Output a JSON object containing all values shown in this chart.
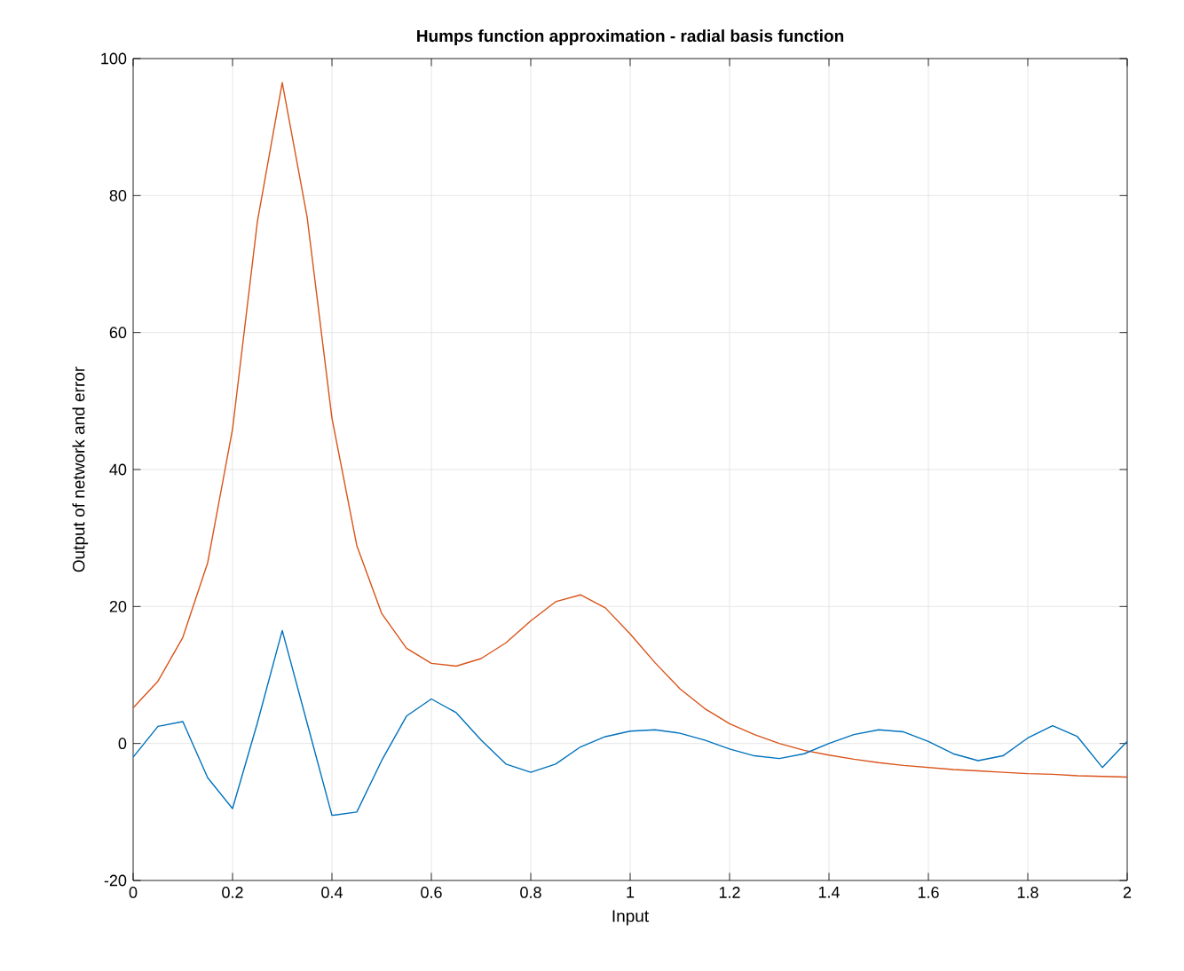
{
  "chart_data": {
    "type": "line",
    "title": "Humps function approximation - radial basis function",
    "xlabel": "Input",
    "ylabel": "Output of network and error",
    "x": [
      0,
      0.05,
      0.1,
      0.15,
      0.2,
      0.25,
      0.3,
      0.35,
      0.4,
      0.45,
      0.5,
      0.55,
      0.6,
      0.65,
      0.7,
      0.75,
      0.8,
      0.85,
      0.9,
      0.95,
      1.0,
      1.05,
      1.1,
      1.15,
      1.2,
      1.25,
      1.3,
      1.35,
      1.4,
      1.45,
      1.5,
      1.55,
      1.6,
      1.65,
      1.7,
      1.75,
      1.8,
      1.85,
      1.9,
      1.95,
      2.0
    ],
    "series": [
      {
        "color": "#d95319",
        "values": [
          5.2,
          9.1,
          15.5,
          26.4,
          45.9,
          76.2,
          96.5,
          76.9,
          47.5,
          28.9,
          19.0,
          13.9,
          11.7,
          11.3,
          12.4,
          14.7,
          17.9,
          20.7,
          21.7,
          19.8,
          16.0,
          11.8,
          8.0,
          5.1,
          2.9,
          1.3,
          0.0,
          -1.0,
          -1.7,
          -2.3,
          -2.8,
          -3.2,
          -3.5,
          -3.8,
          -4.0,
          -4.2,
          -4.4,
          -4.5,
          -4.7,
          -4.8,
          -4.9
        ]
      },
      {
        "color": "#0072bd",
        "values": [
          -2.0,
          2.5,
          3.2,
          -5.0,
          -9.5,
          3.0,
          16.5,
          3.0,
          -10.5,
          -10.0,
          -2.5,
          4.0,
          6.5,
          4.5,
          0.5,
          -3.0,
          -4.2,
          -3.0,
          -0.5,
          1.0,
          1.8,
          2.0,
          1.5,
          0.5,
          -0.8,
          -1.8,
          -2.2,
          -1.5,
          0.0,
          1.3,
          2.0,
          1.7,
          0.3,
          -1.5,
          -2.5,
          -1.8,
          0.8,
          2.6,
          1.0,
          -3.5,
          0.3
        ]
      }
    ],
    "xlim": [
      0,
      2
    ],
    "ylim": [
      -20,
      100
    ],
    "xticks": [
      0,
      0.2,
      0.4,
      0.6,
      0.8,
      1,
      1.2,
      1.4,
      1.6,
      1.8,
      2
    ],
    "yticks": [
      -20,
      0,
      20,
      40,
      60,
      80,
      100
    ],
    "grid": true,
    "marker": "none"
  }
}
